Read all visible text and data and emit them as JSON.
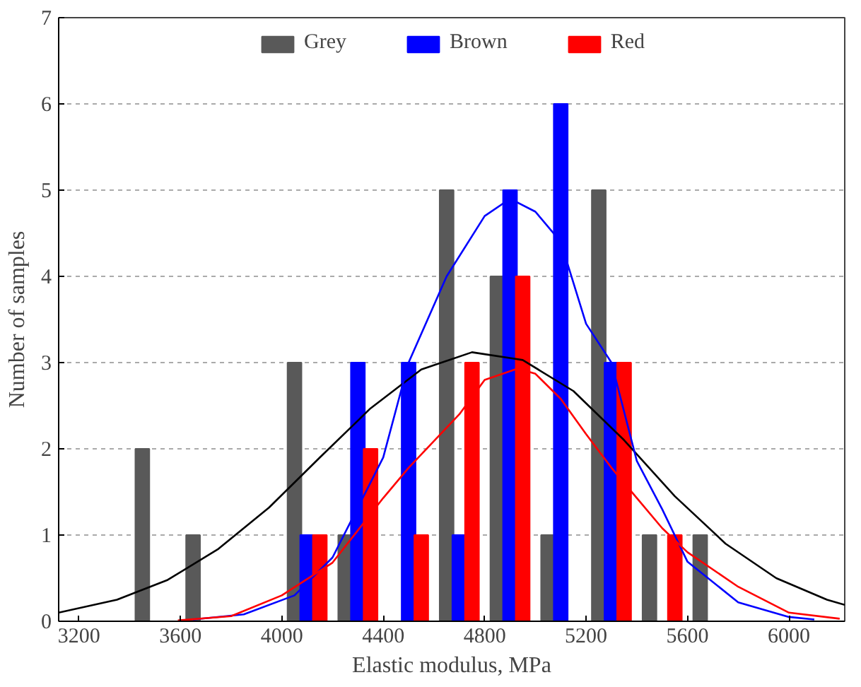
{
  "chart_data": {
    "type": "bar",
    "xlabel": "Elastic modulus, MPa",
    "ylabel": "Number of samples",
    "xlim": [
      3120,
      6220
    ],
    "xticks": [
      3200,
      3600,
      4000,
      4400,
      4800,
      5200,
      5600,
      6000
    ],
    "ylim": [
      0,
      7
    ],
    "yticks": [
      0,
      1,
      2,
      3,
      4,
      5,
      6,
      7
    ],
    "grid": "y",
    "legend": "top",
    "series": [
      {
        "name": "Grey",
        "color": "#595959",
        "x": [
          3450,
          3650,
          4050,
          4250,
          4650,
          4850,
          5050,
          5250,
          5450,
          5650
        ],
        "values": [
          2,
          1,
          3,
          1,
          5,
          4,
          1,
          5,
          1,
          1
        ]
      },
      {
        "name": "Brown",
        "color": "#0000ff",
        "x": [
          4100,
          4300,
          4500,
          4700,
          4900,
          5100,
          5300
        ],
        "values": [
          1,
          3,
          3,
          1,
          5,
          6,
          3
        ]
      },
      {
        "name": "Red",
        "color": "#ff0000",
        "x": [
          4150,
          4350,
          4550,
          4750,
          4950,
          5350,
          5550
        ],
        "values": [
          1,
          2,
          1,
          3,
          4,
          3,
          1
        ]
      },
      {
        "type": "line",
        "color": "#000000",
        "x": [
          3120,
          3350,
          3550,
          3750,
          3950,
          4150,
          4350,
          4550,
          4750,
          4950,
          5150,
          5350,
          5550,
          5750,
          5950,
          6150,
          6220
        ],
        "values": [
          0.1,
          0.25,
          0.48,
          0.84,
          1.32,
          1.9,
          2.47,
          2.92,
          3.12,
          3.03,
          2.67,
          2.1,
          1.45,
          0.9,
          0.5,
          0.25,
          0.19
        ]
      },
      {
        "type": "line",
        "color": "#0000ff",
        "x": [
          3650,
          3850,
          4050,
          4200,
          4400,
          4500,
          4650,
          4800,
          4900,
          5000,
          5100,
          5200,
          5300,
          5400,
          5500,
          5600,
          5800,
          6000,
          6100
        ],
        "values": [
          0.02,
          0.08,
          0.3,
          0.74,
          1.9,
          3.0,
          4.0,
          4.7,
          4.9,
          4.75,
          4.4,
          3.45,
          3.0,
          1.86,
          1.3,
          0.69,
          0.22,
          0.05,
          0.02
        ]
      },
      {
        "type": "line",
        "color": "#ff0000",
        "x": [
          3590,
          3800,
          4000,
          4200,
          4400,
          4500,
          4700,
          4800,
          4930,
          5000,
          5100,
          5200,
          5300,
          5400,
          5500,
          5600,
          5800,
          6000,
          6200
        ],
        "values": [
          0.01,
          0.06,
          0.3,
          0.68,
          1.43,
          1.78,
          2.4,
          2.8,
          2.93,
          2.87,
          2.58,
          2.17,
          1.78,
          1.43,
          1.08,
          0.8,
          0.4,
          0.1,
          0.03
        ]
      }
    ]
  }
}
